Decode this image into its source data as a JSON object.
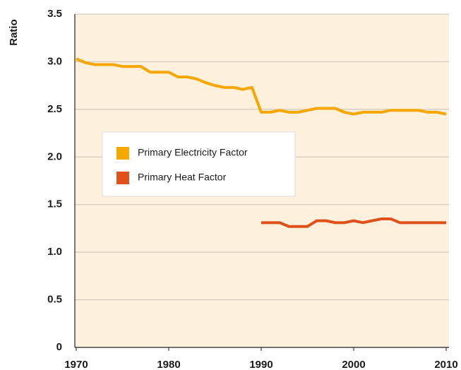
{
  "chart_data": {
    "type": "line",
    "y_label": "Ratio",
    "x": [
      1970,
      1971,
      1972,
      1973,
      1974,
      1975,
      1976,
      1977,
      1978,
      1979,
      1980,
      1981,
      1982,
      1983,
      1984,
      1985,
      1986,
      1987,
      1988,
      1989,
      1990,
      1991,
      1992,
      1993,
      1994,
      1995,
      1996,
      1997,
      1998,
      1999,
      2000,
      2001,
      2002,
      2003,
      2004,
      2005,
      2006,
      2007,
      2008,
      2009,
      2010
    ],
    "series": [
      {
        "name": "Primary Electricity Factor",
        "color": "#f5a700",
        "values": [
          3.03,
          2.99,
          2.97,
          2.97,
          2.97,
          2.95,
          2.95,
          2.95,
          2.89,
          2.89,
          2.89,
          2.84,
          2.84,
          2.82,
          2.78,
          2.75,
          2.73,
          2.73,
          2.71,
          2.73,
          2.47,
          2.47,
          2.49,
          2.47,
          2.47,
          2.49,
          2.51,
          2.51,
          2.51,
          2.47,
          2.45,
          2.47,
          2.47,
          2.47,
          2.49,
          2.49,
          2.49,
          2.49,
          2.47,
          2.47,
          2.45
        ]
      },
      {
        "name": "Primary Heat Factor",
        "color": "#e0501a",
        "values": [
          null,
          null,
          null,
          null,
          null,
          null,
          null,
          null,
          null,
          null,
          null,
          null,
          null,
          null,
          null,
          null,
          null,
          null,
          null,
          null,
          1.31,
          1.31,
          1.31,
          1.27,
          1.27,
          1.27,
          1.33,
          1.33,
          1.31,
          1.31,
          1.33,
          1.31,
          1.33,
          1.35,
          1.35,
          1.31,
          1.31,
          1.31,
          1.31,
          1.31,
          1.31
        ]
      }
    ],
    "xlim": [
      1970,
      2010
    ],
    "xticks": [
      1970,
      1980,
      1990,
      2000,
      2010
    ],
    "ylim": [
      0,
      3.5
    ],
    "yticks": [
      0,
      0.5,
      {
        "value": 1,
        "label": "1.0"
      },
      1.5,
      {
        "value": 2,
        "label": "2.0"
      },
      2.5,
      {
        "value": 3,
        "label": "3.0"
      },
      3.5
    ],
    "grid": true,
    "background": "#fdf0dc"
  }
}
